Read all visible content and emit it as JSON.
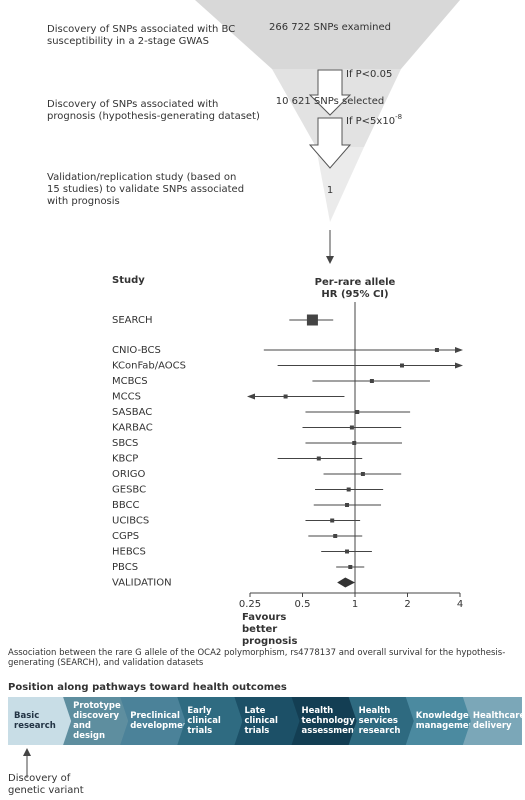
{
  "funnel": {
    "steps": [
      {
        "description": "Discovery of SNPs associated with BC susceptibility in a 2-stage GWAS",
        "count": "266 722 SNPs examined",
        "threshold": "If P<0.05"
      },
      {
        "description": "Discovery of SNPs associated with prognosis (hypothesis-generating dataset)",
        "count": "10 621 SNPs selected",
        "threshold": "If P<5x10",
        "threshold_exponent": "-8"
      },
      {
        "description": "Validation/replication study (based on 15 studies) to validate SNPs associated with prognosis",
        "count": "1"
      }
    ]
  },
  "chart_data": {
    "type": "forest",
    "column_header": "Study",
    "title": "Per-rare allele HR (95% CI)",
    "xlabel": "Favours better prognosis",
    "xscale": "log",
    "xlim": [
      0.25,
      4
    ],
    "xticks": [
      0.25,
      0.5,
      1,
      2,
      4
    ],
    "reference_line": 1,
    "color": "#444444",
    "studies": [
      "SEARCH",
      "CNIO-BCS",
      "KConFab/AOCS",
      "MCBCS",
      "MCCS",
      "SASBAC",
      "KARBAC",
      "SBCS",
      "KBCP",
      "ORIGO",
      "GESBC",
      "BBCC",
      "UCIBCS",
      "CGPS",
      "HEBCS",
      "PBCS"
    ],
    "estimates": [
      0.57,
      2.95,
      1.86,
      1.25,
      0.4,
      1.03,
      0.96,
      0.99,
      0.62,
      1.11,
      0.92,
      0.9,
      0.74,
      0.77,
      0.9,
      0.94
    ],
    "ci_lower": [
      0.42,
      0.3,
      0.36,
      0.57,
      null,
      0.52,
      0.5,
      0.52,
      0.36,
      0.66,
      0.59,
      0.58,
      0.52,
      0.54,
      0.64,
      0.78
    ],
    "ci_upper": [
      0.75,
      null,
      null,
      2.69,
      0.87,
      2.07,
      1.84,
      1.86,
      1.1,
      1.84,
      1.45,
      1.41,
      1.07,
      1.1,
      1.25,
      1.13
    ],
    "summary": {
      "name": "VALIDATION",
      "estimate": 0.88,
      "ci_lower": 0.79,
      "ci_upper": 1.0
    }
  },
  "caption": "Association between the rare G allele of the OCA2 polymorphism, rs4778137 and overall survival for the hypothesis-generating (SEARCH), and validation datasets",
  "pathway": {
    "title": "Position along pathways toward health outcomes",
    "stages": [
      "Basic research",
      "Prototype discovery and design",
      "Preclinical development",
      "Early clinical trials",
      "Late clinical trials",
      "Health technology assessment",
      "Health services research",
      "Knowledge management",
      "Healthcare delivery"
    ],
    "marker_label": "Discovery of genetic variant"
  }
}
